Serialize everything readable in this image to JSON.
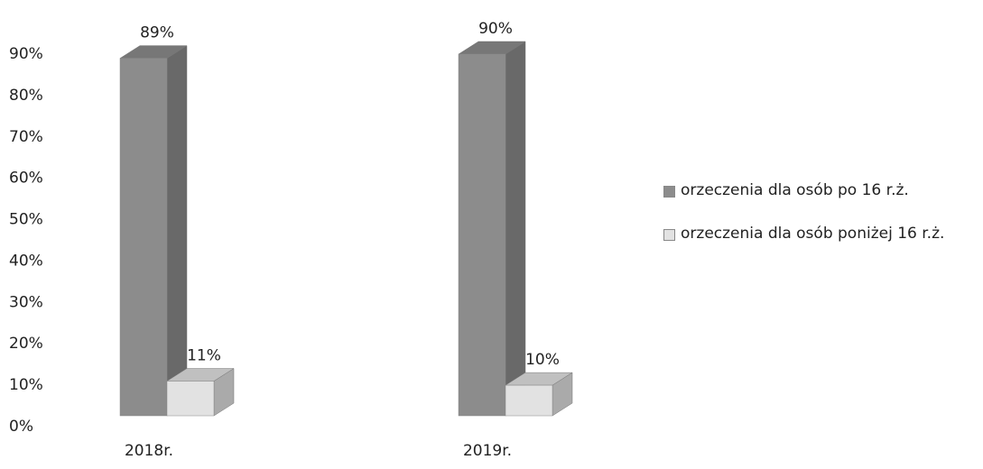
{
  "chart_data": {
    "type": "bar3d",
    "categories": [
      "2018r.",
      "2019r."
    ],
    "series": [
      {
        "name": "orzeczenia dla osób po 16 r.ż.",
        "color": "#8c8c8c",
        "values": [
          89,
          90
        ],
        "value_labels": [
          "89%",
          "90%"
        ]
      },
      {
        "name": "orzeczenia dla osób poniżej 16 r.ż.",
        "color": "#e2e2e2",
        "values": [
          11,
          10
        ],
        "value_labels": [
          "11%",
          "10%"
        ]
      }
    ],
    "ylim": [
      0,
      90
    ],
    "yticks": [
      {
        "value": 0,
        "label": "0%"
      },
      {
        "value": 10,
        "label": "10%"
      },
      {
        "value": 20,
        "label": "20%"
      },
      {
        "value": 30,
        "label": "30%"
      },
      {
        "value": 40,
        "label": "40%"
      },
      {
        "value": 50,
        "label": "50%"
      },
      {
        "value": 60,
        "label": "60%"
      },
      {
        "value": 70,
        "label": "70%"
      },
      {
        "value": 80,
        "label": "80%"
      },
      {
        "value": 90,
        "label": "90%"
      }
    ],
    "legend": "right"
  }
}
